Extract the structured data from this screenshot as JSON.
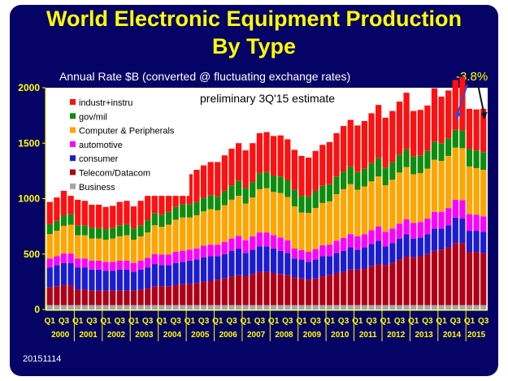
{
  "chart_data": {
    "type": "bar",
    "stacked": true,
    "title": "World Electronic Equipment Production",
    "title_line2": "By Type",
    "subtitle": "Annual Rate $B (converted @ fluctuating exchange rates)",
    "annotation_change": "-3.8%",
    "annotation_note": "preliminary 3Q'15 estimate",
    "date_code": "20151114",
    "ylim": [
      0,
      2000
    ],
    "yticks": [
      "0",
      "500",
      "1000",
      "1500",
      "2000"
    ],
    "grid": false,
    "legend_position": "top-left",
    "colors": {
      "background": "#060366",
      "plot_area": "#ffffff",
      "text": "#ffff00",
      "arrow": "#3a45d8"
    },
    "quarter_labels": [
      "Q1",
      "Q3"
    ],
    "years": [
      "2000",
      "2001",
      "2002",
      "2003",
      "2004",
      "2005",
      "2006",
      "2007",
      "2008",
      "2009",
      "2010",
      "2011",
      "2012",
      "2013",
      "2014",
      "2015"
    ],
    "x": [
      "2000Q1",
      "2000Q2",
      "2000Q3",
      "2000Q4",
      "2001Q1",
      "2001Q2",
      "2001Q3",
      "2001Q4",
      "2002Q1",
      "2002Q2",
      "2002Q3",
      "2002Q4",
      "2003Q1",
      "2003Q2",
      "2003Q3",
      "2003Q4",
      "2004Q1",
      "2004Q2",
      "2004Q3",
      "2004Q4",
      "2005Q1",
      "2005Q2",
      "2005Q3",
      "2005Q4",
      "2006Q1",
      "2006Q2",
      "2006Q3",
      "2006Q4",
      "2007Q1",
      "2007Q2",
      "2007Q3",
      "2007Q4",
      "2008Q1",
      "2008Q2",
      "2008Q3",
      "2008Q4",
      "2009Q1",
      "2009Q2",
      "2009Q3",
      "2009Q4",
      "2010Q1",
      "2010Q2",
      "2010Q3",
      "2010Q4",
      "2011Q1",
      "2011Q2",
      "2011Q3",
      "2011Q4",
      "2012Q1",
      "2012Q2",
      "2012Q3",
      "2012Q4",
      "2013Q1",
      "2013Q2",
      "2013Q3",
      "2013Q4",
      "2014Q1",
      "2014Q2",
      "2014Q3",
      "2014Q4",
      "2015Q1",
      "2015Q2",
      "2015Q3"
    ],
    "series": [
      {
        "name": "Business",
        "color": "#a6a6a6",
        "values": [
          40,
          40,
          40,
          40,
          40,
          40,
          40,
          40,
          40,
          40,
          40,
          40,
          40,
          40,
          40,
          40,
          40,
          40,
          40,
          40,
          40,
          40,
          40,
          40,
          40,
          40,
          40,
          40,
          40,
          40,
          40,
          40,
          40,
          40,
          40,
          40,
          40,
          40,
          40,
          40,
          40,
          40,
          40,
          40,
          40,
          40,
          40,
          40,
          40,
          40,
          40,
          40,
          40,
          40,
          40,
          40,
          40,
          40,
          40,
          40,
          40,
          40,
          40
        ]
      },
      {
        "name": "Telecom/Datacom",
        "color": "#b00018",
        "values": [
          160,
          170,
          180,
          180,
          140,
          140,
          130,
          130,
          130,
          130,
          130,
          130,
          130,
          140,
          150,
          170,
          170,
          170,
          180,
          190,
          190,
          200,
          210,
          220,
          230,
          240,
          260,
          270,
          260,
          280,
          300,
          300,
          290,
          280,
          270,
          250,
          240,
          230,
          240,
          260,
          270,
          290,
          300,
          320,
          320,
          330,
          350,
          370,
          360,
          380,
          410,
          440,
          430,
          440,
          460,
          490,
          500,
          520,
          560,
          560,
          480,
          480,
          470
        ]
      },
      {
        "name": "consumer",
        "color": "#1c1ccf",
        "values": [
          180,
          190,
          200,
          200,
          200,
          200,
          190,
          190,
          180,
          180,
          190,
          190,
          170,
          180,
          190,
          200,
          190,
          190,
          200,
          200,
          210,
          210,
          220,
          220,
          210,
          220,
          230,
          240,
          210,
          220,
          230,
          230,
          220,
          210,
          200,
          170,
          170,
          160,
          170,
          180,
          170,
          180,
          190,
          200,
          180,
          190,
          200,
          210,
          170,
          180,
          190,
          200,
          170,
          170,
          180,
          200,
          190,
          200,
          230,
          220,
          190,
          190,
          190
        ]
      },
      {
        "name": "automotive",
        "color": "#ff00ff",
        "values": [
          80,
          80,
          85,
          85,
          80,
          80,
          80,
          80,
          80,
          80,
          80,
          80,
          80,
          80,
          85,
          90,
          95,
          95,
          100,
          100,
          100,
          100,
          105,
          105,
          105,
          110,
          110,
          115,
          115,
          120,
          125,
          125,
          120,
          120,
          115,
          90,
          85,
          90,
          95,
          100,
          105,
          110,
          115,
          120,
          120,
          120,
          125,
          130,
          130,
          130,
          135,
          135,
          140,
          140,
          140,
          150,
          150,
          155,
          160,
          165,
          150,
          145,
          140
        ]
      },
      {
        "name": "Computer & Peripherals",
        "color": "#ffa500",
        "values": [
          220,
          230,
          250,
          260,
          210,
          210,
          200,
          200,
          200,
          210,
          220,
          230,
          210,
          220,
          230,
          260,
          250,
          270,
          290,
          300,
          290,
          300,
          310,
          320,
          310,
          330,
          350,
          360,
          330,
          350,
          390,
          400,
          390,
          400,
          390,
          380,
          340,
          350,
          370,
          380,
          390,
          420,
          440,
          450,
          420,
          430,
          440,
          450,
          420,
          440,
          460,
          470,
          440,
          440,
          450,
          470,
          460,
          470,
          470,
          470,
          430,
          420,
          420
        ]
      },
      {
        "name": "gov/mil",
        "color": "#0f8c0f",
        "values": [
          90,
          90,
          95,
          95,
          90,
          90,
          95,
          95,
          95,
          95,
          100,
          100,
          100,
          100,
          110,
          110,
          110,
          115,
          115,
          120,
          120,
          120,
          125,
          125,
          125,
          130,
          130,
          135,
          140,
          140,
          145,
          145,
          145,
          150,
          150,
          150,
          150,
          150,
          155,
          155,
          155,
          160,
          160,
          160,
          160,
          160,
          165,
          165,
          160,
          160,
          160,
          160,
          160,
          160,
          160,
          165,
          160,
          160,
          160,
          160,
          160,
          160,
          160
        ]
      },
      {
        "name": "industr+instru",
        "color": "#ff1010",
        "values": [
          200,
          210,
          220,
          230,
          230,
          220,
          210,
          210,
          200,
          200,
          210,
          210,
          200,
          220,
          230,
          240,
          240,
          250,
          260,
          270,
          270,
          290,
          290,
          300,
          310,
          320,
          330,
          340,
          340,
          350,
          360,
          360,
          360,
          370,
          370,
          360,
          360,
          350,
          360,
          370,
          380,
          390,
          410,
          420,
          420,
          430,
          450,
          480,
          450,
          460,
          480,
          510,
          410,
          410,
          410,
          480,
          420,
          430,
          450,
          480,
          360,
          370,
          390
        ]
      }
    ]
  }
}
